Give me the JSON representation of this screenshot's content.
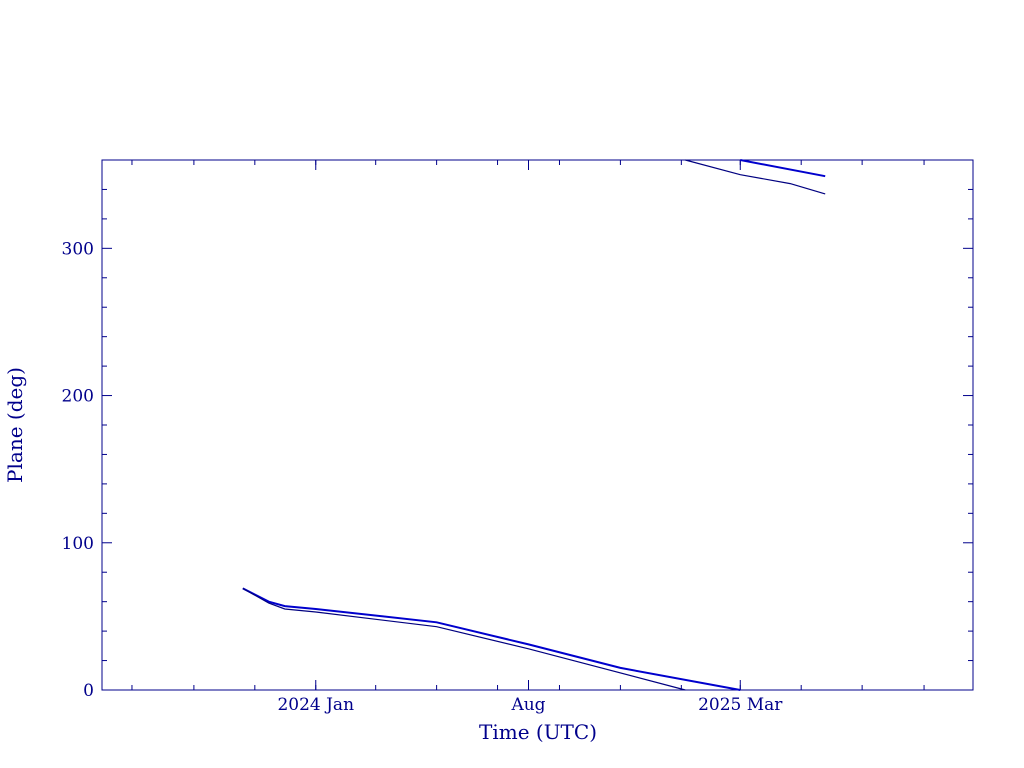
{
  "chart_data": {
    "type": "line",
    "xlabel": "Time (UTC)",
    "ylabel": "Plane (deg)",
    "x_type": "date",
    "xlim": [
      "2023-06-01",
      "2025-10-20"
    ],
    "ylim": [
      0,
      360
    ],
    "xticks": [
      {
        "date": "2024-01-01",
        "label": "2024 Jan"
      },
      {
        "date": "2024-08-01",
        "label": "Aug"
      },
      {
        "date": "2025-03-01",
        "label": "2025 Mar"
      }
    ],
    "yticks": [
      0,
      100,
      200,
      300
    ],
    "grid": false,
    "colors": {
      "axis": "#00008b",
      "series_primary": "#0000cd",
      "series_secondary": "#000080"
    },
    "series": [
      {
        "segments": [
          [
            {
              "x": "2023-10-20",
              "y": 69
            },
            {
              "x": "2023-11-15",
              "y": 60
            },
            {
              "x": "2023-12-01",
              "y": 57
            },
            {
              "x": "2024-01-01",
              "y": 55
            },
            {
              "x": "2024-05-01",
              "y": 46
            },
            {
              "x": "2024-08-01",
              "y": 31
            },
            {
              "x": "2024-11-01",
              "y": 15
            },
            {
              "x": "2025-03-01",
              "y": 0
            }
          ],
          [
            {
              "x": "2025-03-01",
              "y": 360
            },
            {
              "x": "2025-05-25",
              "y": 349
            }
          ]
        ]
      },
      {
        "segments": [
          [
            {
              "x": "2023-10-20",
              "y": 69
            },
            {
              "x": "2023-11-15",
              "y": 59
            },
            {
              "x": "2023-12-01",
              "y": 55
            },
            {
              "x": "2024-01-01",
              "y": 53
            },
            {
              "x": "2024-05-01",
              "y": 43
            },
            {
              "x": "2024-08-01",
              "y": 28
            },
            {
              "x": "2025-01-05",
              "y": 0
            }
          ],
          [
            {
              "x": "2025-01-05",
              "y": 360
            },
            {
              "x": "2025-03-01",
              "y": 350
            },
            {
              "x": "2025-04-20",
              "y": 344
            },
            {
              "x": "2025-05-25",
              "y": 337
            }
          ]
        ]
      }
    ]
  }
}
